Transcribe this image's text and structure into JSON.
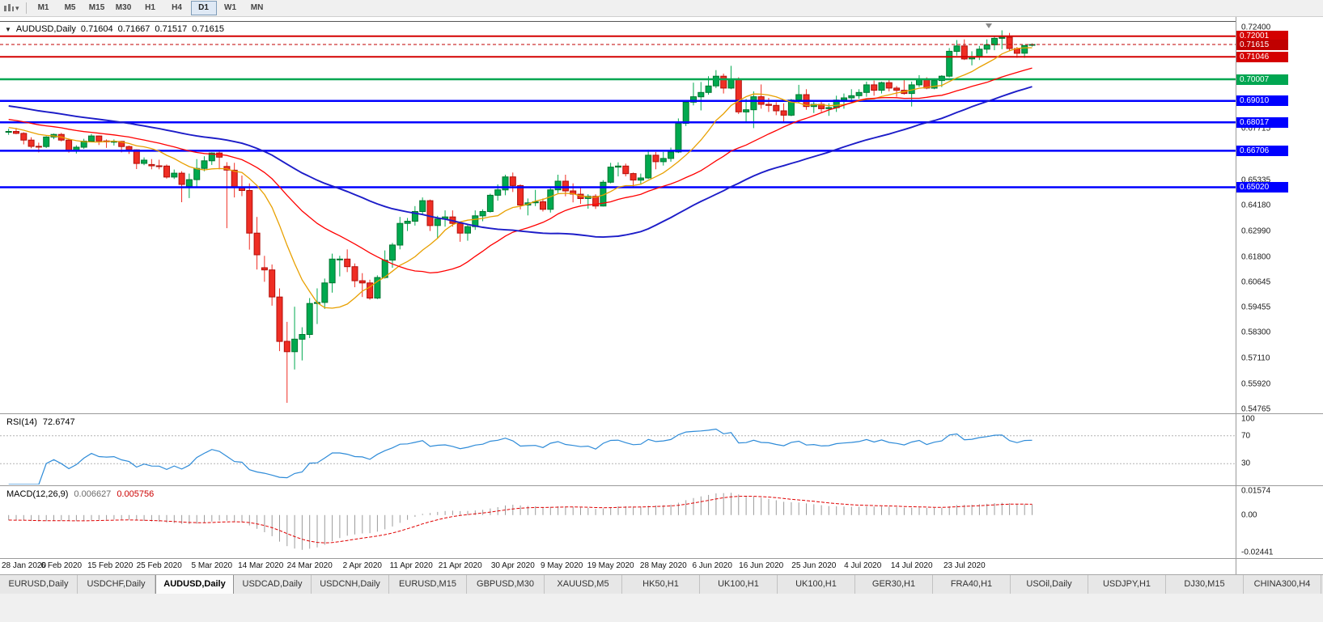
{
  "toolbar": {
    "dropdown_caret": "▾",
    "timeframes": [
      "M1",
      "M5",
      "M15",
      "M30",
      "H1",
      "H4",
      "D1",
      "W1",
      "MN"
    ],
    "active_timeframe": "D1"
  },
  "chart": {
    "marker": "▼",
    "symbol_period": "AUDUSD,Daily",
    "open": "0.71604",
    "high": "0.71667",
    "low": "0.71517",
    "close": "0.71615"
  },
  "price_axis": {
    "ticks": [
      "0.72400",
      "0.67715",
      "0.65335",
      "0.64180",
      "0.62990",
      "0.61800",
      "0.60645",
      "0.59455",
      "0.58300",
      "0.57110",
      "0.55920",
      "0.54765"
    ]
  },
  "levels": [
    {
      "label": "0.72001",
      "value": 0.72001,
      "color": "#D40000",
      "width": 2
    },
    {
      "label": "0.71046",
      "value": 0.71046,
      "color": "#D40000",
      "width": 2
    },
    {
      "label": "0.70007",
      "value": 0.70007,
      "color": "#00A651",
      "width": 2.5
    },
    {
      "label": "0.69010",
      "value": 0.6901,
      "color": "#0000FF",
      "width": 2.5
    },
    {
      "label": "0.68017",
      "value": 0.68017,
      "color": "#0000FF",
      "width": 2.5
    },
    {
      "label": "0.66706",
      "value": 0.66706,
      "color": "#0000FF",
      "width": 2.5
    },
    {
      "label": "0.65020",
      "value": 0.6502,
      "color": "#0000FF",
      "width": 2.5
    }
  ],
  "current_price": {
    "label": "0.71615",
    "value": 0.71615,
    "color": "#C00000"
  },
  "moving_averages": [
    {
      "period": 10,
      "color": "#E8A000",
      "width": 1.3
    },
    {
      "period": 25,
      "color": "#FF0000",
      "width": 1.3
    },
    {
      "period": 50,
      "color": "#1C1CC8",
      "width": 1.9
    }
  ],
  "rsi": {
    "name": "RSI(14)",
    "value_text": "72.6747",
    "period": 14,
    "color": "#2E8BD8",
    "level_lines": [
      70,
      30
    ],
    "axis_labels": [
      {
        "label": "100",
        "value": 100
      },
      {
        "label": "70",
        "value": 70
      },
      {
        "label": "30",
        "value": 30
      }
    ]
  },
  "macd": {
    "name": "MACD(12,26,9)",
    "main_value": "0.006627",
    "signal_value": "0.005756",
    "fast": 12,
    "slow": 26,
    "signal": 9,
    "histogram_color": "#9B9B9B",
    "signal_color": "#E00000",
    "scale_max": 0.01574,
    "scale_min": -0.02441,
    "axis_labels": [
      {
        "label": "0.01574",
        "value": 0.01574
      },
      {
        "label": "0.00",
        "value": 0
      },
      {
        "label": "-0.02441",
        "value": -0.02441
      }
    ]
  },
  "tabs": {
    "items": [
      "EURUSD,Daily",
      "USDCHF,Daily",
      "AUDUSD,Daily",
      "USDCAD,Daily",
      "USDCNH,Daily",
      "EURUSD,M15",
      "GBPUSD,M30",
      "XAUUSD,M5",
      "HK50,H1",
      "UK100,H1",
      "UK100,H1",
      "GER30,H1",
      "FRA40,H1",
      "USOil,Daily",
      "USDJPY,H1",
      "DJ30,M15",
      "CHINA300,H4"
    ],
    "active": "AUDUSD,Daily"
  },
  "config": {
    "colors": {
      "up": "#00A94F",
      "up_stroke": "#00762F",
      "down": "#EF2E24",
      "down_stroke": "#B20F0A",
      "background": "#FFFFFF",
      "chrome": "#F0F0F0"
    },
    "ma_seed": {
      "start": 0.7005,
      "end": 0.676,
      "count": 50
    },
    "price_scale": {
      "top": 0.72662,
      "bottom": 0.54575
    }
  },
  "chart_data": {
    "type": "candlestick",
    "symbol": "AUDUSD",
    "timeframe": "Daily",
    "ohlc_current": {
      "open": 0.71604,
      "high": 0.71667,
      "low": 0.71517,
      "close": 0.71615
    },
    "x_labels": [
      {
        "label": "28 Jan 2020",
        "index": 0
      },
      {
        "label": "6 Feb 2020",
        "index": 7
      },
      {
        "label": "15 Feb 2020",
        "index": 13.5
      },
      {
        "label": "25 Feb 2020",
        "index": 20
      },
      {
        "label": "5 Mar 2020",
        "index": 27
      },
      {
        "label": "14 Mar 2020",
        "index": 33.5
      },
      {
        "label": "24 Mar 2020",
        "index": 40
      },
      {
        "label": "2 Apr 2020",
        "index": 47
      },
      {
        "label": "11 Apr 2020",
        "index": 53.5
      },
      {
        "label": "21 Apr 2020",
        "index": 60
      },
      {
        "label": "30 Apr 2020",
        "index": 67
      },
      {
        "label": "9 May 2020",
        "index": 73.5
      },
      {
        "label": "19 May 2020",
        "index": 80
      },
      {
        "label": "28 May 2020",
        "index": 87
      },
      {
        "label": "6 Jun 2020",
        "index": 93.5
      },
      {
        "label": "16 Jun 2020",
        "index": 100
      },
      {
        "label": "25 Jun 2020",
        "index": 107
      },
      {
        "label": "4 Jul 2020",
        "index": 113.5
      },
      {
        "label": "14 Jul 2020",
        "index": 120
      },
      {
        "label": "23 Jul 2020",
        "index": 127
      }
    ],
    "candles": [
      [
        0.6758,
        0.6772,
        0.6744,
        0.676
      ],
      [
        0.676,
        0.6776,
        0.6747,
        0.6751
      ],
      [
        0.6751,
        0.6756,
        0.67,
        0.672
      ],
      [
        0.672,
        0.6733,
        0.6682,
        0.6691
      ],
      [
        0.6691,
        0.6708,
        0.6663,
        0.669
      ],
      [
        0.669,
        0.6738,
        0.6683,
        0.6734
      ],
      [
        0.6734,
        0.675,
        0.6724,
        0.6746
      ],
      [
        0.6746,
        0.6753,
        0.6714,
        0.672
      ],
      [
        0.672,
        0.6727,
        0.6662,
        0.6672
      ],
      [
        0.6672,
        0.6696,
        0.6658,
        0.6687
      ],
      [
        0.6687,
        0.6726,
        0.6679,
        0.6715
      ],
      [
        0.6715,
        0.6748,
        0.671,
        0.6739
      ],
      [
        0.6739,
        0.6741,
        0.6697,
        0.6716
      ],
      [
        0.6716,
        0.6723,
        0.6684,
        0.6712
      ],
      [
        0.6712,
        0.6723,
        0.6695,
        0.6714
      ],
      [
        0.6714,
        0.6716,
        0.6663,
        0.669
      ],
      [
        0.669,
        0.6694,
        0.6656,
        0.6675
      ],
      [
        0.6675,
        0.6677,
        0.6586,
        0.6612
      ],
      [
        0.6612,
        0.664,
        0.6604,
        0.6627
      ],
      [
        0.6607,
        0.6632,
        0.6585,
        0.6601
      ],
      [
        0.6601,
        0.6629,
        0.6585,
        0.66
      ],
      [
        0.66,
        0.6607,
        0.6542,
        0.6549
      ],
      [
        0.6549,
        0.6584,
        0.654,
        0.6567
      ],
      [
        0.6567,
        0.6576,
        0.6433,
        0.6515
      ],
      [
        0.6505,
        0.6565,
        0.6452,
        0.6537
      ],
      [
        0.6537,
        0.6632,
        0.6503,
        0.6589
      ],
      [
        0.6589,
        0.6645,
        0.6576,
        0.6624
      ],
      [
        0.6624,
        0.6663,
        0.6605,
        0.666
      ],
      [
        0.666,
        0.6668,
        0.6585,
        0.6641
      ],
      [
        0.6598,
        0.6618,
        0.6313,
        0.6581
      ],
      [
        0.6581,
        0.6615,
        0.6455,
        0.6501
      ],
      [
        0.6501,
        0.6556,
        0.6461,
        0.6487
      ],
      [
        0.6487,
        0.652,
        0.6214,
        0.629
      ],
      [
        0.629,
        0.6365,
        0.6122,
        0.619
      ],
      [
        0.613,
        0.6185,
        0.6065,
        0.612
      ],
      [
        0.612,
        0.6145,
        0.5955,
        0.5995
      ],
      [
        0.5995,
        0.6035,
        0.5745,
        0.579
      ],
      [
        0.579,
        0.588,
        0.5506,
        0.5742
      ],
      [
        0.5742,
        0.595,
        0.566,
        0.58
      ],
      [
        0.58,
        0.5855,
        0.5702,
        0.5822
      ],
      [
        0.5822,
        0.599,
        0.5805,
        0.5965
      ],
      [
        0.5965,
        0.6035,
        0.587,
        0.597
      ],
      [
        0.597,
        0.608,
        0.594,
        0.606
      ],
      [
        0.606,
        0.6195,
        0.6015,
        0.617
      ],
      [
        0.617,
        0.6185,
        0.609,
        0.617
      ],
      [
        0.617,
        0.6215,
        0.611,
        0.6135
      ],
      [
        0.6135,
        0.615,
        0.604,
        0.607
      ],
      [
        0.607,
        0.6105,
        0.5995,
        0.606
      ],
      [
        0.606,
        0.6075,
        0.5982,
        0.599
      ],
      [
        0.599,
        0.6095,
        0.5985,
        0.6085
      ],
      [
        0.6085,
        0.621,
        0.608,
        0.6165
      ],
      [
        0.6165,
        0.6245,
        0.613,
        0.6235
      ],
      [
        0.6235,
        0.6365,
        0.6215,
        0.6335
      ],
      [
        0.6335,
        0.636,
        0.63,
        0.6345
      ],
      [
        0.6345,
        0.6415,
        0.6325,
        0.639
      ],
      [
        0.639,
        0.6455,
        0.6375,
        0.644
      ],
      [
        0.644,
        0.6445,
        0.63,
        0.6325
      ],
      [
        0.6325,
        0.637,
        0.6265,
        0.6355
      ],
      [
        0.6355,
        0.6395,
        0.632,
        0.6365
      ],
      [
        0.6365,
        0.6395,
        0.632,
        0.6335
      ],
      [
        0.6335,
        0.634,
        0.625,
        0.629
      ],
      [
        0.629,
        0.633,
        0.6255,
        0.632
      ],
      [
        0.632,
        0.6395,
        0.6305,
        0.637
      ],
      [
        0.637,
        0.64,
        0.6345,
        0.639
      ],
      [
        0.639,
        0.6472,
        0.6385,
        0.6465
      ],
      [
        0.6465,
        0.6515,
        0.644,
        0.649
      ],
      [
        0.649,
        0.656,
        0.6465,
        0.655
      ],
      [
        0.655,
        0.657,
        0.648,
        0.651
      ],
      [
        0.651,
        0.6515,
        0.64,
        0.642
      ],
      [
        0.642,
        0.645,
        0.6372,
        0.643
      ],
      [
        0.643,
        0.649,
        0.6415,
        0.6435
      ],
      [
        0.6435,
        0.645,
        0.639,
        0.64
      ],
      [
        0.64,
        0.65,
        0.6385,
        0.649
      ],
      [
        0.649,
        0.656,
        0.6475,
        0.653
      ],
      [
        0.653,
        0.656,
        0.646,
        0.6485
      ],
      [
        0.6485,
        0.652,
        0.6432,
        0.647
      ],
      [
        0.647,
        0.6505,
        0.6425,
        0.645
      ],
      [
        0.645,
        0.647,
        0.6403,
        0.646
      ],
      [
        0.646,
        0.647,
        0.6402,
        0.6415
      ],
      [
        0.6415,
        0.6535,
        0.6413,
        0.6525
      ],
      [
        0.6525,
        0.6615,
        0.652,
        0.6595
      ],
      [
        0.6595,
        0.6617,
        0.6552,
        0.66
      ],
      [
        0.66,
        0.6611,
        0.6552,
        0.6565
      ],
      [
        0.6565,
        0.657,
        0.6505,
        0.6535
      ],
      [
        0.6535,
        0.6565,
        0.6518,
        0.6545
      ],
      [
        0.6545,
        0.6675,
        0.654,
        0.665
      ],
      [
        0.665,
        0.6665,
        0.6585,
        0.662
      ],
      [
        0.662,
        0.6665,
        0.6602,
        0.6635
      ],
      [
        0.6635,
        0.6685,
        0.662,
        0.6665
      ],
      [
        0.6665,
        0.682,
        0.666,
        0.6797
      ],
      [
        0.6797,
        0.69,
        0.6785,
        0.6895
      ],
      [
        0.6895,
        0.6985,
        0.688,
        0.692
      ],
      [
        0.692,
        0.6988,
        0.6857,
        0.694
      ],
      [
        0.694,
        0.7015,
        0.693,
        0.697
      ],
      [
        0.697,
        0.7043,
        0.696,
        0.7015
      ],
      [
        0.7015,
        0.7027,
        0.6935,
        0.696
      ],
      [
        0.696,
        0.7063,
        0.6955,
        0.7
      ],
      [
        0.7,
        0.701,
        0.684,
        0.685
      ],
      [
        0.685,
        0.691,
        0.68,
        0.686
      ],
      [
        0.686,
        0.6945,
        0.6775,
        0.692
      ],
      [
        0.692,
        0.6977,
        0.6865,
        0.6885
      ],
      [
        0.6885,
        0.6915,
        0.685,
        0.688
      ],
      [
        0.688,
        0.6895,
        0.6835,
        0.6855
      ],
      [
        0.6855,
        0.689,
        0.6805,
        0.6835
      ],
      [
        0.6835,
        0.691,
        0.683,
        0.6905
      ],
      [
        0.6905,
        0.6975,
        0.689,
        0.693
      ],
      [
        0.693,
        0.6955,
        0.686,
        0.6875
      ],
      [
        0.6875,
        0.6905,
        0.6845,
        0.6885
      ],
      [
        0.6885,
        0.69,
        0.685,
        0.6865
      ],
      [
        0.6865,
        0.689,
        0.6832,
        0.687
      ],
      [
        0.687,
        0.6925,
        0.685,
        0.6905
      ],
      [
        0.6905,
        0.6935,
        0.6865,
        0.6915
      ],
      [
        0.6915,
        0.6955,
        0.69,
        0.6925
      ],
      [
        0.6925,
        0.6955,
        0.691,
        0.694
      ],
      [
        0.694,
        0.699,
        0.692,
        0.6975
      ],
      [
        0.6975,
        0.6995,
        0.6925,
        0.695
      ],
      [
        0.695,
        0.699,
        0.6935,
        0.6985
      ],
      [
        0.6985,
        0.7,
        0.6945,
        0.696
      ],
      [
        0.696,
        0.697,
        0.692,
        0.695
      ],
      [
        0.695,
        0.7,
        0.693,
        0.6935
      ],
      [
        0.6935,
        0.699,
        0.6875,
        0.6975
      ],
      [
        0.6975,
        0.702,
        0.6965,
        0.7
      ],
      [
        0.7,
        0.701,
        0.6955,
        0.696
      ],
      [
        0.696,
        0.7005,
        0.6955,
        0.6995
      ],
      [
        0.6995,
        0.702,
        0.6965,
        0.7015
      ],
      [
        0.7015,
        0.7145,
        0.701,
        0.713
      ],
      [
        0.713,
        0.7182,
        0.711,
        0.7155
      ],
      [
        0.7155,
        0.7185,
        0.709,
        0.7095
      ],
      [
        0.7095,
        0.713,
        0.7065,
        0.7105
      ],
      [
        0.7105,
        0.7155,
        0.709,
        0.714
      ],
      [
        0.714,
        0.7185,
        0.712,
        0.716
      ],
      [
        0.716,
        0.7197,
        0.7135,
        0.719
      ],
      [
        0.719,
        0.7227,
        0.714,
        0.7195
      ],
      [
        0.7195,
        0.7215,
        0.713,
        0.7143
      ],
      [
        0.7143,
        0.715,
        0.71,
        0.7121
      ],
      [
        0.7121,
        0.7157,
        0.71,
        0.7157
      ],
      [
        0.71604,
        0.71667,
        0.71517,
        0.71615
      ]
    ]
  }
}
